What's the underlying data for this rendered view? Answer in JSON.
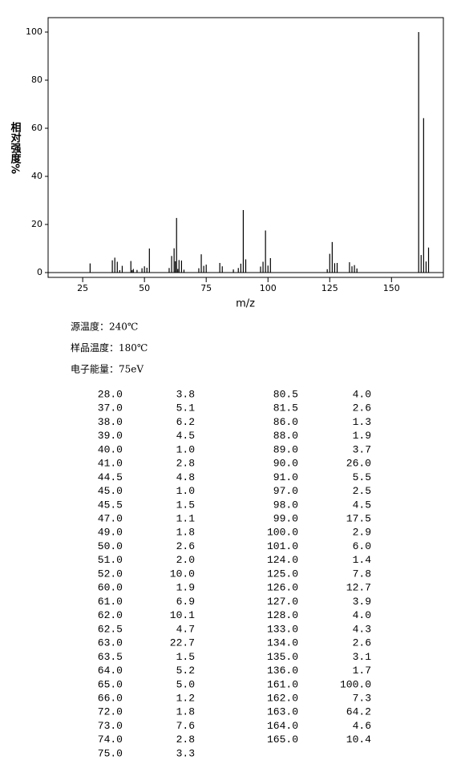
{
  "chart_data": {
    "type": "bar",
    "ylabel": "相对强度%",
    "xlabel": "m/z",
    "x": [
      28,
      37,
      38,
      39,
      40,
      41,
      44.5,
      45,
      45.5,
      47,
      49,
      50,
      51,
      52,
      60,
      61,
      62,
      62.5,
      63,
      63.5,
      64,
      65,
      66,
      72,
      73,
      74,
      75,
      80.5,
      81.5,
      86,
      88,
      89,
      90,
      91,
      97,
      98,
      99,
      100,
      101,
      124,
      125,
      126,
      127,
      128,
      133,
      134,
      135,
      136,
      161,
      162,
      163,
      164,
      165
    ],
    "x_labels": [
      "28.0",
      "37.0",
      "38.0",
      "39.0",
      "40.0",
      "41.0",
      "44.5",
      "45.0",
      "45.5",
      "47.0",
      "49.0",
      "50.0",
      "51.0",
      "52.0",
      "60.0",
      "61.0",
      "62.0",
      "62.5",
      "63.0",
      "63.5",
      "64.0",
      "65.0",
      "66.0",
      "72.0",
      "73.0",
      "74.0",
      "75.0",
      "80.5",
      "81.5",
      "86.0",
      "88.0",
      "89.0",
      "90.0",
      "91.0",
      "97.0",
      "98.0",
      "99.0",
      "100.0",
      "101.0",
      "124.0",
      "125.0",
      "126.0",
      "127.0",
      "128.0",
      "133.0",
      "134.0",
      "135.0",
      "136.0",
      "161.0",
      "162.0",
      "163.0",
      "164.0",
      "165.0"
    ],
    "values": [
      3.8,
      5.1,
      6.2,
      4.5,
      1.0,
      2.8,
      4.8,
      1.0,
      1.5,
      1.1,
      1.8,
      2.6,
      2.0,
      10.0,
      1.9,
      6.9,
      10.1,
      4.7,
      22.7,
      1.5,
      5.2,
      5.0,
      1.2,
      1.8,
      7.6,
      2.8,
      3.3,
      4.0,
      2.6,
      1.3,
      1.9,
      3.7,
      26.0,
      5.5,
      2.5,
      4.5,
      17.5,
      2.9,
      6.0,
      1.4,
      7.8,
      12.7,
      3.9,
      4.0,
      4.3,
      2.6,
      3.1,
      1.7,
      100.0,
      7.3,
      64.2,
      4.6,
      10.4
    ],
    "value_labels": [
      "3.8",
      "5.1",
      "6.2",
      "4.5",
      "1.0",
      "2.8",
      "4.8",
      "1.0",
      "1.5",
      "1.1",
      "1.8",
      "2.6",
      "2.0",
      "10.0",
      "1.9",
      "6.9",
      "10.1",
      "4.7",
      "22.7",
      "1.5",
      "5.2",
      "5.0",
      "1.2",
      "1.8",
      "7.6",
      "2.8",
      "3.3",
      "4.0",
      "2.6",
      "1.3",
      "1.9",
      "3.7",
      "26.0",
      "5.5",
      "2.5",
      "4.5",
      "17.5",
      "2.9",
      "6.0",
      "1.4",
      "7.8",
      "12.7",
      "3.9",
      "4.0",
      "4.3",
      "2.6",
      "3.1",
      "1.7",
      "100.0",
      "7.3",
      "64.2",
      "4.6",
      "10.4"
    ],
    "color": "#000000",
    "xlim": [
      11,
      171
    ],
    "xticks": [
      25,
      50,
      75,
      100,
      125,
      150
    ],
    "ylim": [
      -2,
      106
    ],
    "yticks": [
      0,
      20,
      40,
      60,
      80,
      100
    ]
  },
  "conditions": [
    "源温度：240℃",
    "样品温度：180℃",
    "电子能量：75eV"
  ]
}
